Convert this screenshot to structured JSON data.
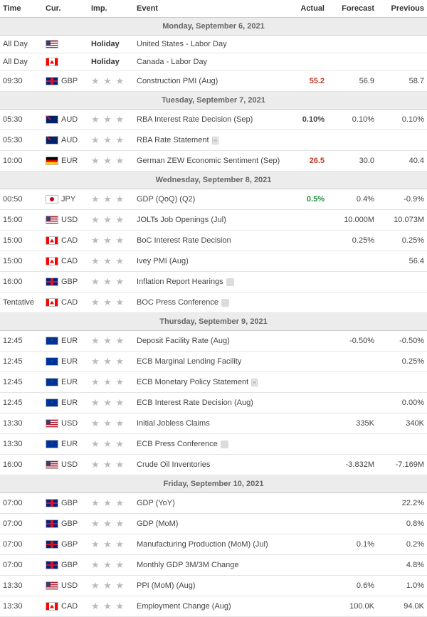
{
  "columns": {
    "time": "Time",
    "cur": "Cur.",
    "imp": "Imp.",
    "event": "Event",
    "actual": "Actual",
    "forecast": "Forecast",
    "previous": "Previous"
  },
  "colors": {
    "headerBorder": "#cccccc",
    "rowBorder": "#e5e5e5",
    "dayHeaderBg": "#ececec",
    "dayHeaderText": "#666666",
    "text": "#444444",
    "actualRed": "#c0392b",
    "actualGreen": "#1e8e3e",
    "starGrey": "#bbbbbb"
  },
  "calendar": [
    {
      "type": "day",
      "label": "Monday, September 6, 2021"
    },
    {
      "type": "row",
      "time": "All Day",
      "flag": "us",
      "cur": "",
      "impKind": "text",
      "imp": "Holiday",
      "event": "United States - Labor Day",
      "actual": "",
      "forecast": "",
      "previous": ""
    },
    {
      "type": "row",
      "time": "All Day",
      "flag": "ca",
      "cur": "",
      "impKind": "text",
      "imp": "Holiday",
      "event": "Canada - Labor Day",
      "actual": "",
      "forecast": "",
      "previous": ""
    },
    {
      "type": "row",
      "time": "09:30",
      "flag": "gb",
      "cur": "GBP",
      "impKind": "stars",
      "stars": 3,
      "event": "Construction PMI (Aug)",
      "actual": "55.2",
      "actualColor": "red",
      "forecast": "56.9",
      "previous": "58.7"
    },
    {
      "type": "day",
      "label": "Tuesday, September 7, 2021"
    },
    {
      "type": "row",
      "time": "05:30",
      "flag": "au",
      "cur": "AUD",
      "impKind": "stars",
      "stars": 3,
      "event": "RBA Interest Rate Decision (Sep)",
      "actual": "0.10%",
      "actualColor": "bold",
      "forecast": "0.10%",
      "previous": "0.10%"
    },
    {
      "type": "row",
      "time": "05:30",
      "flag": "au",
      "cur": "AUD",
      "impKind": "stars",
      "stars": 3,
      "event": "RBA Rate Statement",
      "icon": "doc",
      "actual": "",
      "forecast": "",
      "previous": ""
    },
    {
      "type": "row",
      "time": "10:00",
      "flag": "de",
      "cur": "EUR",
      "impKind": "stars",
      "stars": 3,
      "event": "German ZEW Economic Sentiment (Sep)",
      "actual": "26.5",
      "actualColor": "red",
      "forecast": "30.0",
      "previous": "40.4"
    },
    {
      "type": "day",
      "label": "Wednesday, September 8, 2021"
    },
    {
      "type": "row",
      "time": "00:50",
      "flag": "jp",
      "cur": "JPY",
      "impKind": "stars",
      "stars": 3,
      "event": "GDP (QoQ) (Q2)",
      "actual": "0.5%",
      "actualColor": "green",
      "forecast": "0.4%",
      "previous": "-0.9%"
    },
    {
      "type": "row",
      "time": "15:00",
      "flag": "us",
      "cur": "USD",
      "impKind": "stars",
      "stars": 3,
      "event": "JOLTs Job Openings (Jul)",
      "actual": "",
      "forecast": "10.000M",
      "previous": "10.073M"
    },
    {
      "type": "row",
      "time": "15:00",
      "flag": "ca",
      "cur": "CAD",
      "impKind": "stars",
      "stars": 3,
      "event": "BoC Interest Rate Decision",
      "actual": "",
      "forecast": "0.25%",
      "previous": "0.25%"
    },
    {
      "type": "row",
      "time": "15:00",
      "flag": "ca",
      "cur": "CAD",
      "impKind": "stars",
      "stars": 3,
      "event": "Ivey PMI (Aug)",
      "actual": "",
      "forecast": "",
      "previous": "56.4"
    },
    {
      "type": "row",
      "time": "16:00",
      "flag": "gb",
      "cur": "GBP",
      "impKind": "stars",
      "stars": 3,
      "event": "Inflation Report Hearings",
      "icon": "audio",
      "actual": "",
      "forecast": "",
      "previous": ""
    },
    {
      "type": "row",
      "time": "Tentative",
      "flag": "ca",
      "cur": "CAD",
      "impKind": "stars",
      "stars": 3,
      "event": "BOC Press Conference",
      "icon": "audio",
      "actual": "",
      "forecast": "",
      "previous": ""
    },
    {
      "type": "day",
      "label": "Thursday, September 9, 2021"
    },
    {
      "type": "row",
      "time": "12:45",
      "flag": "eu",
      "cur": "EUR",
      "impKind": "stars",
      "stars": 3,
      "event": "Deposit Facility Rate (Aug)",
      "actual": "",
      "forecast": "-0.50%",
      "previous": "-0.50%"
    },
    {
      "type": "row",
      "time": "12:45",
      "flag": "eu",
      "cur": "EUR",
      "impKind": "stars",
      "stars": 3,
      "event": "ECB Marginal Lending Facility",
      "actual": "",
      "forecast": "",
      "previous": "0.25%"
    },
    {
      "type": "row",
      "time": "12:45",
      "flag": "eu",
      "cur": "EUR",
      "impKind": "stars",
      "stars": 3,
      "event": "ECB Monetary Policy Statement",
      "icon": "doc",
      "actual": "",
      "forecast": "",
      "previous": ""
    },
    {
      "type": "row",
      "time": "12:45",
      "flag": "eu",
      "cur": "EUR",
      "impKind": "stars",
      "stars": 3,
      "event": "ECB Interest Rate Decision (Aug)",
      "actual": "",
      "forecast": "",
      "previous": "0.00%"
    },
    {
      "type": "row",
      "time": "13:30",
      "flag": "us",
      "cur": "USD",
      "impKind": "stars",
      "stars": 3,
      "event": "Initial Jobless Claims",
      "actual": "",
      "forecast": "335K",
      "previous": "340K"
    },
    {
      "type": "row",
      "time": "13:30",
      "flag": "eu",
      "cur": "EUR",
      "impKind": "stars",
      "stars": 3,
      "event": "ECB Press Conference",
      "icon": "audio",
      "actual": "",
      "forecast": "",
      "previous": ""
    },
    {
      "type": "row",
      "time": "16:00",
      "flag": "us",
      "cur": "USD",
      "impKind": "stars",
      "stars": 3,
      "event": "Crude Oil Inventories",
      "actual": "",
      "forecast": "-3.832M",
      "previous": "-7.169M"
    },
    {
      "type": "day",
      "label": "Friday, September 10, 2021"
    },
    {
      "type": "row",
      "time": "07:00",
      "flag": "gb",
      "cur": "GBP",
      "impKind": "stars",
      "stars": 3,
      "event": "GDP (YoY)",
      "actual": "",
      "forecast": "",
      "previous": "22.2%"
    },
    {
      "type": "row",
      "time": "07:00",
      "flag": "gb",
      "cur": "GBP",
      "impKind": "stars",
      "stars": 3,
      "event": "GDP (MoM)",
      "actual": "",
      "forecast": "",
      "previous": "0.8%"
    },
    {
      "type": "row",
      "time": "07:00",
      "flag": "gb",
      "cur": "GBP",
      "impKind": "stars",
      "stars": 3,
      "event": "Manufacturing Production (MoM) (Jul)",
      "actual": "",
      "forecast": "0.1%",
      "previous": "0.2%"
    },
    {
      "type": "row",
      "time": "07:00",
      "flag": "gb",
      "cur": "GBP",
      "impKind": "stars",
      "stars": 3,
      "event": "Monthly GDP 3M/3M Change",
      "actual": "",
      "forecast": "",
      "previous": "4.8%"
    },
    {
      "type": "row",
      "time": "13:30",
      "flag": "us",
      "cur": "USD",
      "impKind": "stars",
      "stars": 3,
      "event": "PPI (MoM) (Aug)",
      "actual": "",
      "forecast": "0.6%",
      "previous": "1.0%"
    },
    {
      "type": "row",
      "time": "13:30",
      "flag": "ca",
      "cur": "CAD",
      "impKind": "stars",
      "stars": 3,
      "event": "Employment Change (Aug)",
      "actual": "",
      "forecast": "100.0K",
      "previous": "94.0K"
    }
  ]
}
